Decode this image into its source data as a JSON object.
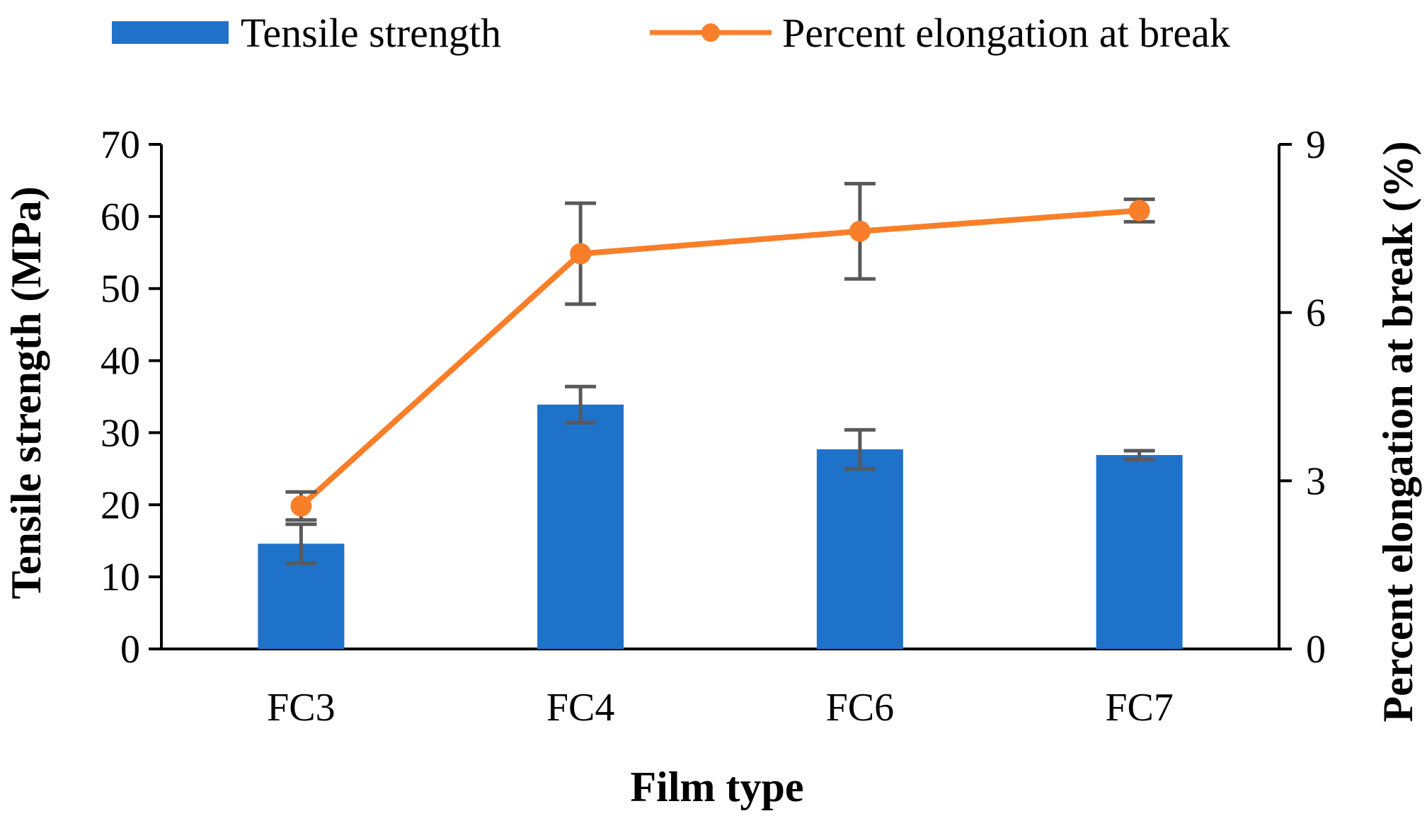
{
  "chart_data": {
    "type": "bar+line",
    "categories": [
      "FC3",
      "FC4",
      "FC6",
      "FC7"
    ],
    "series": [
      {
        "name": "Tensile strength",
        "type": "bar",
        "axis": "left",
        "values": [
          14.6,
          33.9,
          27.7,
          26.9
        ],
        "error": [
          2.7,
          2.5,
          2.7,
          0.6
        ],
        "color": "#1f72c9"
      },
      {
        "name": "Percent elongation at break",
        "type": "line",
        "axis": "right",
        "values": [
          2.55,
          7.05,
          7.45,
          7.82
        ],
        "error": [
          0.25,
          0.9,
          0.85,
          0.2
        ],
        "color": "#f97e29"
      }
    ],
    "xlabel": "Film type",
    "ylabel_left": "Tensile strength (MPa)",
    "ylabel_right": "Percent elongation at break (%)",
    "ylim_left": [
      0,
      70
    ],
    "yticks_left": [
      "0",
      "10",
      "20",
      "30",
      "40",
      "50",
      "60",
      "70"
    ],
    "ylim_right": [
      0,
      9
    ],
    "yticks_right": [
      "0",
      "3",
      "6",
      "9"
    ],
    "legend_position": "top",
    "grid": false,
    "error_bar_color": "#595959"
  }
}
